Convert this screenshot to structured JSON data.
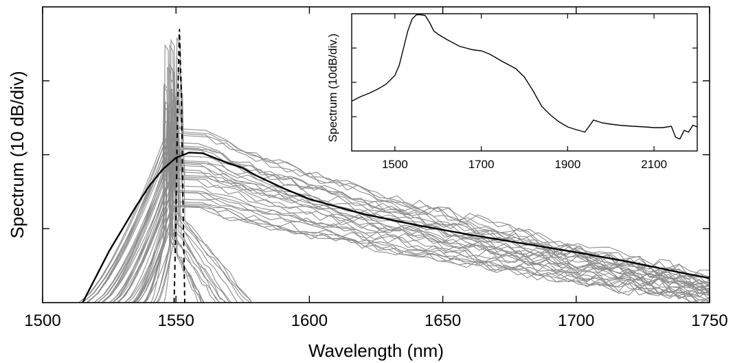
{
  "chart_data": [
    {
      "type": "line",
      "title": "",
      "xlabel": "Wavelength (nm)",
      "ylabel": "Spectrum (10 dB/div)",
      "xlim": [
        1500,
        1750
      ],
      "ylim": [
        0,
        4
      ],
      "xticks": [
        "1500",
        "1550",
        "1600",
        "1650",
        "1700",
        "1750"
      ],
      "y_tick_values": [
        1,
        2,
        3
      ],
      "y_tick_labels_shown": false,
      "grid": false,
      "legend": "none",
      "colors": {
        "ensemble": "#8c8c8c",
        "average": "#000000",
        "input": "#000000"
      },
      "series": [
        {
          "style": "solid-black-thick",
          "x": [
            1515,
            1520,
            1525,
            1530,
            1535,
            1540,
            1545,
            1550,
            1555,
            1560,
            1565,
            1570,
            1575,
            1580,
            1590,
            1600,
            1610,
            1620,
            1640,
            1660,
            1680,
            1700,
            1720,
            1740,
            1750
          ],
          "y": [
            0.0,
            0.35,
            0.7,
            1.0,
            1.3,
            1.58,
            1.8,
            1.96,
            2.03,
            2.02,
            1.95,
            1.88,
            1.82,
            1.72,
            1.55,
            1.4,
            1.3,
            1.2,
            1.05,
            0.92,
            0.8,
            0.68,
            0.55,
            0.4,
            0.33
          ]
        },
        {
          "style": "dashed-black",
          "x": [
            1549.3,
            1550.0,
            1550.7,
            1551.3,
            1552.0,
            1552.7,
            1553.3
          ],
          "y": [
            0.0,
            1.2,
            2.8,
            3.7,
            2.8,
            1.2,
            0.0
          ]
        }
      ],
      "ensemble_lines": {
        "count": 48,
        "peak_range_x": [
          1546,
          1552
        ],
        "peak_y_max": 3.6,
        "tail_end_y_range": [
          0.0,
          0.35
        ]
      }
    },
    {
      "type": "line",
      "title": "",
      "xlabel": "",
      "ylabel": "Spectrum (10dB/div.)",
      "xlim": [
        1400,
        2200
      ],
      "ylim": [
        0,
        4
      ],
      "xticks": [
        "1500",
        "1700",
        "1900",
        "2100"
      ],
      "y_tick_values": [
        1,
        2,
        3
      ],
      "y_tick_labels_shown": false,
      "grid": false,
      "series": [
        {
          "style": "solid-black",
          "x": [
            1400,
            1420,
            1440,
            1460,
            1480,
            1500,
            1510,
            1520,
            1530,
            1540,
            1550,
            1560,
            1570,
            1580,
            1590,
            1600,
            1620,
            1650,
            1680,
            1700,
            1720,
            1750,
            1780,
            1800,
            1820,
            1840,
            1860,
            1880,
            1900,
            1920,
            1940,
            1960,
            1980,
            2000,
            2020,
            2050,
            2080,
            2100,
            2120,
            2140,
            2150,
            2160,
            2170,
            2180,
            2190,
            2200
          ],
          "y": [
            1.45,
            1.58,
            1.68,
            1.8,
            1.95,
            2.2,
            2.5,
            3.0,
            3.5,
            3.85,
            3.97,
            3.97,
            3.95,
            3.75,
            3.5,
            3.4,
            3.25,
            3.05,
            2.95,
            2.92,
            2.82,
            2.6,
            2.4,
            2.15,
            1.75,
            1.3,
            1.05,
            0.85,
            0.7,
            0.62,
            0.55,
            0.9,
            0.82,
            0.78,
            0.75,
            0.72,
            0.7,
            0.68,
            0.68,
            0.72,
            0.4,
            0.35,
            0.6,
            0.55,
            0.75,
            0.7
          ]
        }
      ]
    }
  ]
}
